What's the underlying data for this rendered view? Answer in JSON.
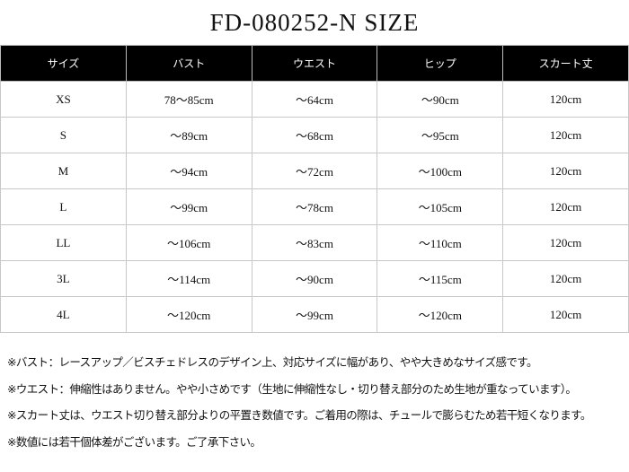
{
  "title": "FD-080252-N SIZE",
  "table": {
    "headers": [
      "サイズ",
      "バスト",
      "ウエスト",
      "ヒップ",
      "スカート丈"
    ],
    "rows": [
      [
        "XS",
        "78〜85cm",
        "〜64cm",
        "〜90cm",
        "120cm"
      ],
      [
        "S",
        "〜89cm",
        "〜68cm",
        "〜95cm",
        "120cm"
      ],
      [
        "M",
        "〜94cm",
        "〜72cm",
        "〜100cm",
        "120cm"
      ],
      [
        "L",
        "〜99cm",
        "〜78cm",
        "〜105cm",
        "120cm"
      ],
      [
        "LL",
        "〜106cm",
        "〜83cm",
        "〜110cm",
        "120cm"
      ],
      [
        "3L",
        "〜114cm",
        "〜90cm",
        "〜115cm",
        "120cm"
      ],
      [
        "4L",
        "〜120cm",
        "〜99cm",
        "〜120cm",
        "120cm"
      ]
    ]
  },
  "notes": [
    "※バスト：レースアップ／ビスチェドレスのデザイン上、対応サイズに幅があり、やや大きめなサイズ感です。",
    "※ウエスト：伸縮性はありません。やや小さめです（生地に伸縮性なし・切り替え部分のため生地が重なっています）。",
    "※スカート丈は、ウエスト切り替え部分よりの平置き数値です。ご着用の際は、チュールで膨らむため若干短くなります。",
    "※数値には若干個体差がございます。ご了承下さい。"
  ]
}
